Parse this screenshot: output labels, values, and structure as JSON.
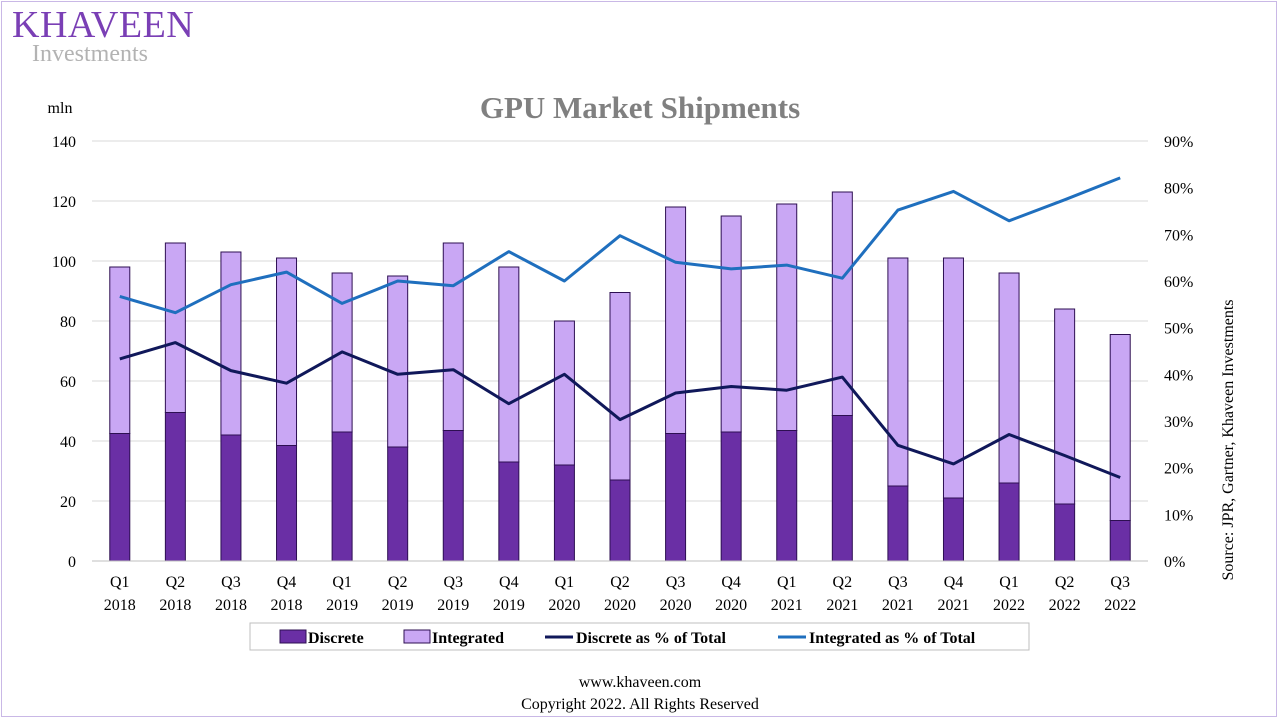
{
  "logo": {
    "main": "KHAVEEN",
    "sub": "Investments"
  },
  "footer": {
    "url": "www.khaveen.com",
    "copyright": "Copyright 2022. All Rights Reserved"
  },
  "colors": {
    "discrete": "#6a2fa5",
    "integrated": "#c9a7f4",
    "discrete_pct": "#10185a",
    "integrated_pct": "#1f6fbe",
    "title": "#808080",
    "grid": "#d9d9d9"
  },
  "chart_data": {
    "type": "bar",
    "title": "GPU Market Shipments",
    "ylabel": "mln",
    "source": "Source: JPR, Gartner, Khaveen Investments",
    "stacked": true,
    "categories": [
      [
        "Q1",
        "2018"
      ],
      [
        "Q2",
        "2018"
      ],
      [
        "Q3",
        "2018"
      ],
      [
        "Q4",
        "2018"
      ],
      [
        "Q1",
        "2019"
      ],
      [
        "Q2",
        "2019"
      ],
      [
        "Q3",
        "2019"
      ],
      [
        "Q4",
        "2019"
      ],
      [
        "Q1",
        "2020"
      ],
      [
        "Q2",
        "2020"
      ],
      [
        "Q3",
        "2020"
      ],
      [
        "Q4",
        "2020"
      ],
      [
        "Q1",
        "2021"
      ],
      [
        "Q2",
        "2021"
      ],
      [
        "Q3",
        "2021"
      ],
      [
        "Q4",
        "2021"
      ],
      [
        "Q1",
        "2022"
      ],
      [
        "Q2",
        "2022"
      ],
      [
        "Q3",
        "2022"
      ]
    ],
    "ylim": [
      0,
      140
    ],
    "yticks": [
      0,
      20,
      40,
      60,
      80,
      100,
      120,
      140
    ],
    "y2lim": [
      0,
      90
    ],
    "y2ticks": [
      "0%",
      "10%",
      "20%",
      "30%",
      "40%",
      "50%",
      "60%",
      "70%",
      "80%",
      "90%"
    ],
    "series": [
      {
        "name": "Discrete",
        "kind": "bar",
        "axis": "left",
        "values": [
          42.5,
          49.5,
          42,
          38.5,
          43,
          38,
          43.5,
          33,
          32,
          27,
          42.5,
          43,
          43.5,
          48.5,
          25,
          21,
          26,
          19,
          13.5
        ]
      },
      {
        "name": "Integrated",
        "kind": "bar",
        "axis": "left",
        "values": [
          55.5,
          56.5,
          61,
          62.5,
          53,
          57,
          62.5,
          65,
          48,
          62.5,
          75.5,
          72,
          75.5,
          74.5,
          76,
          80,
          70,
          65,
          62
        ]
      },
      {
        "name": "Discrete as % of Total",
        "kind": "line",
        "axis": "right",
        "values": [
          43.3,
          46.8,
          40.8,
          38.1,
          44.8,
          40.0,
          41.0,
          33.7,
          40.0,
          30.3,
          36.0,
          37.4,
          36.6,
          39.4,
          24.8,
          20.8,
          27.1,
          22.6,
          17.9
        ]
      },
      {
        "name": "Integrated as % of Total",
        "kind": "line",
        "axis": "right",
        "values": [
          56.7,
          53.2,
          59.2,
          61.9,
          55.2,
          60.0,
          59.0,
          66.3,
          60.0,
          69.7,
          64.0,
          62.6,
          63.4,
          60.6,
          75.2,
          79.2,
          72.9,
          77.4,
          82.1
        ]
      }
    ],
    "grid": true,
    "legend_position": "bottom"
  }
}
